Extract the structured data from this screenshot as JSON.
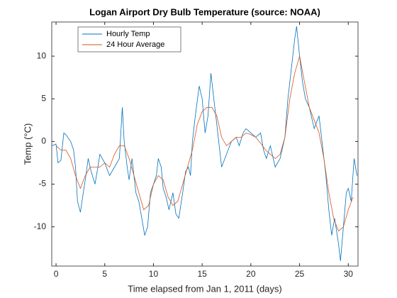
{
  "chart_data": {
    "type": "line",
    "title": "Logan Airport Dry Bulb Temperature (source: NOAA)",
    "xlabel": "Time elapsed from Jan 1, 2011 (days)",
    "ylabel": "Temp (°C)",
    "xlim": [
      -0.44,
      31.0
    ],
    "ylim": [
      -14.6,
      14
    ],
    "xticks": [
      0,
      5,
      10,
      15,
      20,
      25,
      30
    ],
    "yticks": [
      -10,
      -5,
      0,
      5,
      10
    ],
    "legend": "upper left",
    "series": [
      {
        "name": "Hourly Temp",
        "color": "#0072bd",
        "x": [
          -0.4,
          0,
          0.2,
          0.5,
          0.8,
          1,
          1.5,
          1.8,
          2,
          2.2,
          2.5,
          2.8,
          3,
          3.3,
          3.6,
          4,
          4.3,
          4.5,
          5,
          5.5,
          6,
          6.5,
          6.8,
          7,
          7.3,
          7.5,
          7.8,
          8.2,
          8.5,
          8.8,
          9.1,
          9.4,
          9.7,
          10,
          10.3,
          10.5,
          10.8,
          11,
          11.3,
          11.6,
          12,
          12.3,
          12.6,
          13,
          13.3,
          13.6,
          13.8,
          14,
          14.3,
          14.7,
          15,
          15.3,
          15.6,
          15.9,
          16.2,
          16.5,
          16.8,
          17,
          17.5,
          18,
          18.5,
          18.8,
          19.2,
          19.5,
          20,
          20.5,
          21,
          21.3,
          21.6,
          22,
          22.5,
          23,
          23.5,
          23.8,
          24.2,
          24.5,
          24.7,
          25,
          25.3,
          25.6,
          26,
          26.5,
          27,
          27.3,
          27.7,
          28,
          28.3,
          28.6,
          29,
          29.2,
          29.5,
          29.8,
          30,
          30.3,
          30.6,
          30.9
        ],
        "values": [
          -0.5,
          -0.3,
          -2.5,
          -2.2,
          1,
          0.8,
          0,
          -1,
          -3,
          -7,
          -8.3,
          -6,
          -4.5,
          -2,
          -3.5,
          -5,
          -3,
          -1.5,
          -2.5,
          -4,
          -3,
          -2,
          4,
          0,
          -3,
          -4.5,
          -2,
          -6,
          -7,
          -9,
          -11,
          -10,
          -6,
          -5,
          -4,
          -2,
          -3,
          -5.5,
          -6.5,
          -8,
          -6,
          -8.5,
          -9,
          -6,
          -3.5,
          -3,
          -4,
          0,
          3,
          6.5,
          5,
          1,
          3,
          8,
          5,
          2,
          -1,
          -3,
          -1.5,
          0,
          0.5,
          -0.5,
          1,
          1.5,
          1,
          0.5,
          1,
          -1,
          -2,
          -0.5,
          -3,
          -2,
          0.5,
          5,
          9,
          12,
          13.5,
          10,
          7,
          5,
          4,
          1.5,
          3,
          0,
          -4,
          -8,
          -11,
          -9,
          -12,
          -14,
          -10,
          -6,
          -5.5,
          -7,
          -2,
          -4
        ]
      },
      {
        "name": "24 Hour Average",
        "color": "#d95319",
        "x": [
          0,
          0.5,
          1,
          1.5,
          2,
          2.5,
          3,
          3.5,
          4,
          4.5,
          5,
          5.5,
          6,
          6.5,
          7,
          7.5,
          8,
          8.5,
          9,
          9.5,
          10,
          10.5,
          11,
          11.5,
          12,
          12.5,
          13,
          13.5,
          14,
          14.5,
          15,
          15.5,
          16,
          16.5,
          17,
          17.5,
          18,
          18.5,
          19,
          19.5,
          20,
          20.5,
          21,
          21.5,
          22,
          22.5,
          23,
          23.5,
          24,
          24.5,
          25,
          25.5,
          26,
          26.5,
          27,
          27.5,
          28,
          28.5,
          29,
          29.5,
          30,
          30.5
        ],
        "values": [
          -0.5,
          -1,
          -1,
          -2,
          -4,
          -5.5,
          -4,
          -3,
          -3,
          -3,
          -2.5,
          -3,
          -1.5,
          -0.5,
          -0.5,
          -2,
          -4,
          -6,
          -8,
          -7.5,
          -5,
          -4,
          -4.5,
          -6.5,
          -7.5,
          -7,
          -5,
          -3,
          -1,
          2,
          3.5,
          4,
          4,
          3,
          0.5,
          -0.5,
          0,
          0.5,
          0.5,
          1,
          0.8,
          0.5,
          -0.2,
          -1,
          -1.5,
          -2,
          -1.5,
          0.5,
          5,
          8,
          10,
          7,
          4,
          2.5,
          1,
          -2,
          -6,
          -9,
          -10.5,
          -10,
          -8,
          -6.5
        ]
      }
    ]
  }
}
